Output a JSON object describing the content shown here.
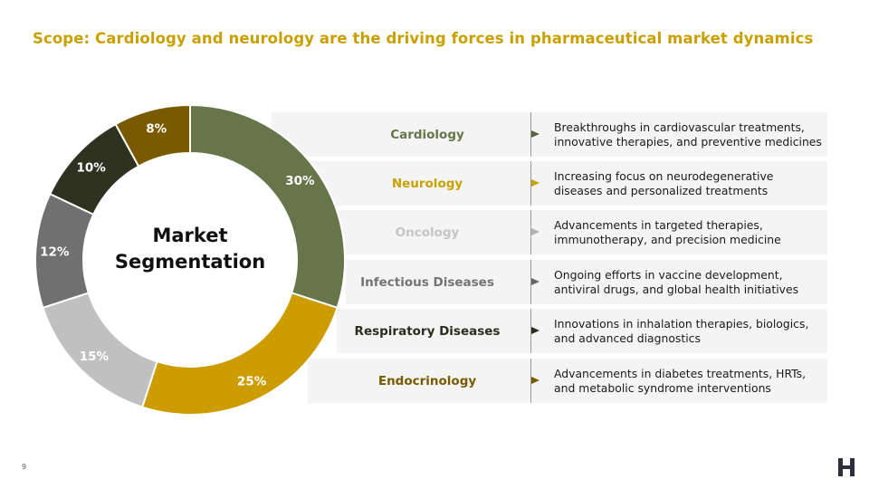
{
  "slide": {
    "title": "Scope: Cardiology and neurology are the driving forces in pharmaceutical market dynamics",
    "center_label": "Market\nSegmentation",
    "page_number": "9"
  },
  "chart_data": {
    "type": "pie",
    "variant": "donut",
    "labels": [
      "Cardiology",
      "Neurology",
      "Oncology",
      "Infectious Diseases",
      "Respiratory Diseases",
      "Endocrinology"
    ],
    "slices": [
      {
        "value": 30,
        "label": "30%",
        "color": "#66764a",
        "label_color": "#ffffff"
      },
      {
        "value": 25,
        "label": "25%",
        "color": "#cc9c00",
        "label_color": "#ffffff"
      },
      {
        "value": 15,
        "label": "15%",
        "color": "#c0c0c0",
        "label_color": "#ffffff"
      },
      {
        "value": 12,
        "label": "12%",
        "color": "#707070",
        "label_color": "#ffffff"
      },
      {
        "value": 10,
        "label": "10%",
        "color": "#2f3220",
        "label_color": "#ffffff"
      },
      {
        "value": 8,
        "label": "8%",
        "color": "#7a5a00",
        "label_color": "#ffffff"
      }
    ]
  },
  "segments": [
    {
      "name": "Cardiology",
      "color": "#66764a",
      "arrow_color": "#55633e",
      "description": "Breakthroughs in cardiovascular treatments,\ninnovative therapies, and preventive medicines"
    },
    {
      "name": "Neurology",
      "color": "#c9a000",
      "arrow_color": "#c9a000",
      "description": "Increasing focus on neurodegenerative\ndiseases and personalized treatments"
    },
    {
      "name": "Oncology",
      "color": "#c4c4c4",
      "arrow_color": "#b0b0b0",
      "description": "Advancements in targeted therapies,\nimmunotherapy, and precision medicine"
    },
    {
      "name": "Infectious Diseases",
      "color": "#737373",
      "arrow_color": "#666666",
      "description": "Ongoing efforts in vaccine development,\nantiviral drugs, and global health initiatives"
    },
    {
      "name": "Respiratory Diseases",
      "color": "#2b2b1e",
      "arrow_color": "#2b2b1e",
      "description": "Innovations in inhalation therapies, biologics,\nand advanced diagnostics"
    },
    {
      "name": "Endocrinology",
      "color": "#7a5a00",
      "arrow_color": "#7a5a00",
      "description": "Advancements in diabetes treatments, HRTs,\nand metabolic syndrome interventions"
    }
  ],
  "logo": {
    "icon": "brand-logo-icon",
    "color": "#2a2f3a"
  }
}
